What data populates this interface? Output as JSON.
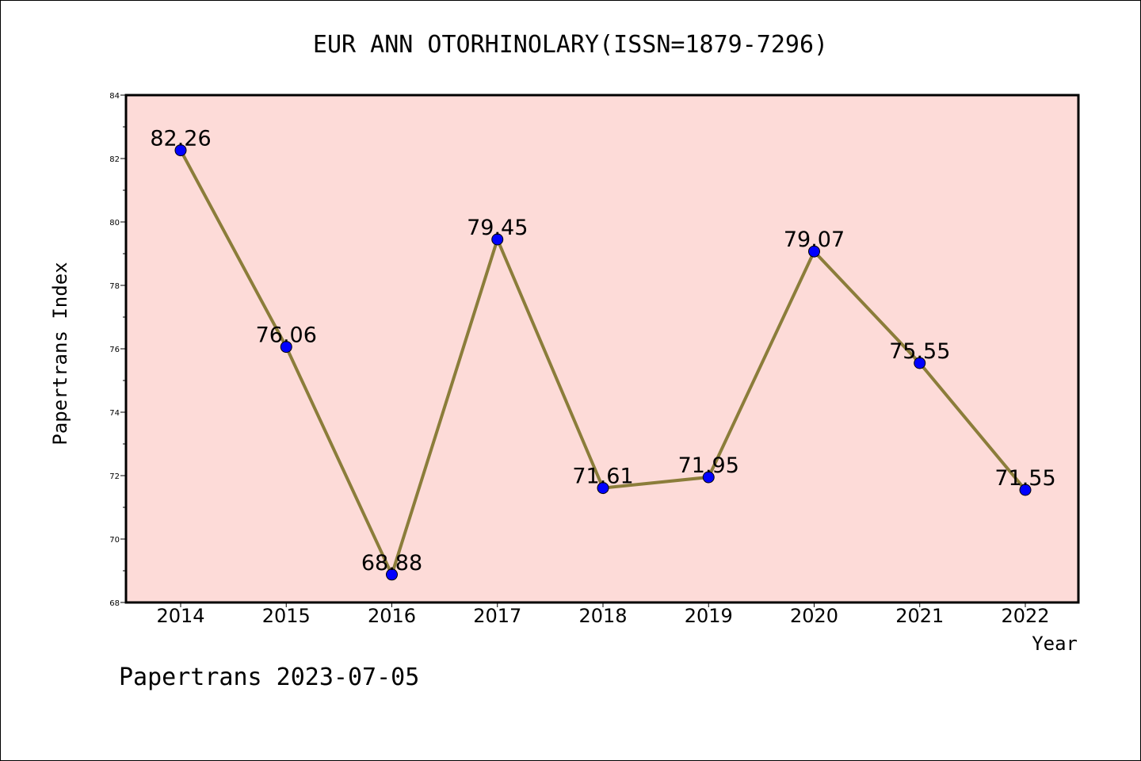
{
  "chart_data": {
    "type": "line",
    "title": "EUR ANN OTORHINOLARY(ISSN=1879-7296)",
    "xlabel": "Year",
    "ylabel": "Papertrans Index",
    "categories": [
      "2014",
      "2015",
      "2016",
      "2017",
      "2018",
      "2019",
      "2020",
      "2021",
      "2022"
    ],
    "values": [
      82.26,
      76.06,
      68.88,
      79.45,
      71.61,
      71.95,
      79.07,
      75.55,
      71.55
    ],
    "data_labels": [
      "82.26",
      "76.06",
      "68.88",
      "79.45",
      "71.61",
      "71.95",
      "79.07",
      "75.55",
      "71.55"
    ],
    "ylim": [
      68,
      84
    ],
    "yticks": [
      68,
      70,
      72,
      74,
      76,
      78,
      80,
      82,
      84
    ],
    "grid": false,
    "line_color": "#8b7d3a",
    "marker_color": "#0000ff",
    "plot_background": "#fddbd8"
  },
  "footer": {
    "text": "Papertrans 2023-07-05"
  }
}
